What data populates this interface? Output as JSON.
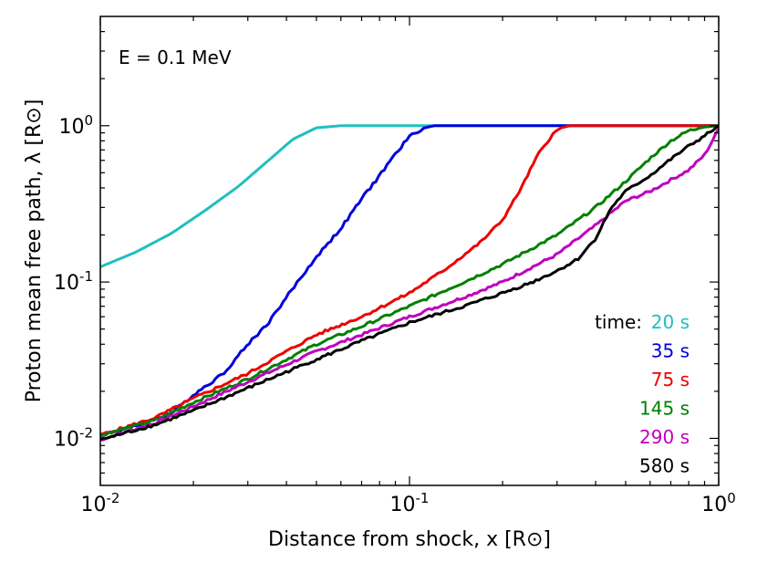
{
  "chart_data": {
    "type": "line",
    "title": "",
    "xlabel": "Distance from shock, x [R⊙]",
    "ylabel": "Proton mean free path, λ [R⊙]",
    "xscale": "log",
    "yscale": "log",
    "xlim": [
      0.01,
      1
    ],
    "ylim": [
      0.005,
      5
    ],
    "grid": false,
    "annotation": "E = 0.1 MeV",
    "legend_title": "time:",
    "legend_placement": "right",
    "x_ticks": [
      {
        "base": "10",
        "exp": "-2",
        "value": 0.01
      },
      {
        "base": "10",
        "exp": "-1",
        "value": 0.1
      },
      {
        "base": "10",
        "exp": "0",
        "value": 1
      }
    ],
    "y_ticks": [
      {
        "base": "10",
        "exp": "-2",
        "value": 0.01
      },
      {
        "base": "10",
        "exp": "-1",
        "value": 0.1
      },
      {
        "base": "10",
        "exp": "0",
        "value": 1
      }
    ],
    "series": [
      {
        "name": "20 s",
        "color": "#1fbfbf",
        "x": [
          0.01,
          0.013,
          0.017,
          0.022,
          0.028,
          0.035,
          0.042,
          0.05,
          0.06,
          0.1,
          0.3,
          1.0
        ],
        "y": [
          0.125,
          0.155,
          0.205,
          0.29,
          0.41,
          0.6,
          0.82,
          0.97,
          1.0,
          1.0,
          1.0,
          1.0
        ]
      },
      {
        "name": "35 s",
        "color": "#0000dd",
        "x": [
          0.01,
          0.013,
          0.017,
          0.02,
          0.025,
          0.03,
          0.035,
          0.04,
          0.05,
          0.06,
          0.07,
          0.08,
          0.09,
          0.1,
          0.11,
          0.12,
          0.2,
          1.0
        ],
        "y": [
          0.0105,
          0.012,
          0.0145,
          0.019,
          0.026,
          0.04,
          0.055,
          0.08,
          0.145,
          0.22,
          0.34,
          0.48,
          0.66,
          0.85,
          0.96,
          1.0,
          1.0,
          1.0
        ],
        "noise": 0.04
      },
      {
        "name": "75 s",
        "color": "#ee0000",
        "x": [
          0.01,
          0.015,
          0.02,
          0.03,
          0.04,
          0.05,
          0.07,
          0.1,
          0.13,
          0.17,
          0.2,
          0.23,
          0.26,
          0.29,
          0.31,
          0.33,
          0.5,
          1.0
        ],
        "y": [
          0.0105,
          0.0135,
          0.018,
          0.026,
          0.036,
          0.046,
          0.06,
          0.085,
          0.12,
          0.18,
          0.25,
          0.4,
          0.65,
          0.88,
          0.97,
          1.0,
          1.0,
          1.0
        ],
        "noise": 0.035
      },
      {
        "name": "145 s",
        "color": "#008000",
        "x": [
          0.01,
          0.015,
          0.02,
          0.03,
          0.04,
          0.05,
          0.07,
          0.1,
          0.15,
          0.2,
          0.3,
          0.4,
          0.5,
          0.6,
          0.7,
          0.8,
          0.9,
          1.0
        ],
        "y": [
          0.0105,
          0.013,
          0.017,
          0.024,
          0.032,
          0.04,
          0.052,
          0.07,
          0.1,
          0.13,
          0.2,
          0.3,
          0.44,
          0.62,
          0.8,
          0.93,
          0.98,
          1.0
        ],
        "noise": 0.035
      },
      {
        "name": "290 s",
        "color": "#bf00bf",
        "x": [
          0.01,
          0.015,
          0.02,
          0.03,
          0.05,
          0.07,
          0.1,
          0.15,
          0.2,
          0.3,
          0.4,
          0.5,
          0.6,
          0.7,
          0.8,
          0.9,
          1.0
        ],
        "y": [
          0.0098,
          0.0125,
          0.016,
          0.023,
          0.036,
          0.046,
          0.06,
          0.08,
          0.1,
          0.15,
          0.23,
          0.33,
          0.38,
          0.45,
          0.52,
          0.65,
          0.95
        ],
        "noise": 0.035
      },
      {
        "name": "580 s",
        "color": "#000000",
        "x": [
          0.01,
          0.015,
          0.02,
          0.03,
          0.05,
          0.07,
          0.1,
          0.15,
          0.2,
          0.25,
          0.3,
          0.35,
          0.4,
          0.45,
          0.5,
          0.6,
          0.7,
          0.8,
          0.9,
          1.0
        ],
        "y": [
          0.0098,
          0.0122,
          0.015,
          0.021,
          0.032,
          0.042,
          0.055,
          0.07,
          0.085,
          0.1,
          0.118,
          0.14,
          0.19,
          0.3,
          0.38,
          0.48,
          0.61,
          0.74,
          0.86,
          1.0
        ],
        "noise": 0.035
      }
    ]
  }
}
